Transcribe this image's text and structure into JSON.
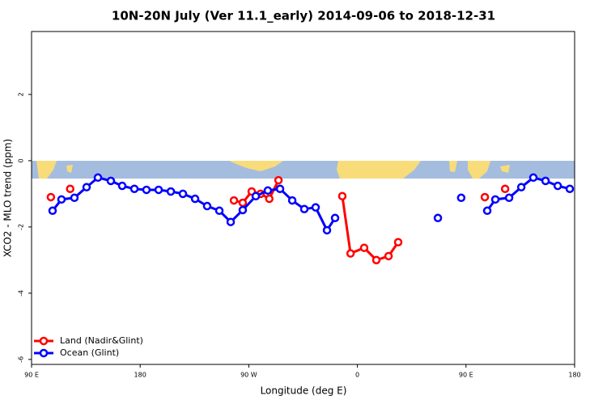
{
  "chart_data": {
    "type": "line",
    "title": "10N-20N July (Ver 11.1_early)   2014-09-06 to 2018-12-31",
    "x_label": "Longitude (deg E)",
    "y_label": "XCO2 - MLO trend (ppm)",
    "xlim": [
      90,
      540
    ],
    "ylim": [
      -6.15,
      3.9
    ],
    "xticks": [
      {
        "value": 90,
        "label": "90 E"
      },
      {
        "value": 180,
        "label": "180"
      },
      {
        "value": 270,
        "label": "90 W"
      },
      {
        "value": 360,
        "label": "0"
      },
      {
        "value": 450,
        "label": "90 E"
      },
      {
        "value": 540,
        "label": "180"
      }
    ],
    "yticks": [
      -6,
      -4,
      -2,
      0,
      2
    ],
    "legend": "bottom-left",
    "series": [
      {
        "name": "Land (Nadir&Glint)",
        "color": "#ff0000",
        "x": [
          106,
          114,
          122,
          190,
          257.7,
          265,
          272.4,
          279.8,
          287,
          294.6,
          320,
          347.5,
          354.3,
          365.6,
          375.7,
          385.8,
          393.8,
          430,
          465.6,
          474,
          482.4
        ],
        "values": [
          -1.1,
          null,
          -0.85,
          null,
          -1.2,
          -1.27,
          -0.93,
          -1.0,
          -1.15,
          -0.59,
          null,
          -1.07,
          -2.8,
          -2.63,
          -3.0,
          -2.88,
          -2.46,
          null,
          -1.1,
          null,
          -0.85
        ]
      },
      {
        "name": "Ocean (Glint)",
        "color": "#0000ff",
        "x": [
          107.4,
          114.8,
          125.5,
          135.6,
          145,
          155.7,
          165.1,
          175.2,
          185.2,
          195.3,
          205.4,
          215.4,
          225.5,
          235.5,
          245.6,
          255,
          265,
          275.8,
          285.8,
          295.9,
          306,
          316,
          325.4,
          334.8,
          341.5,
          400,
          426.7,
          436,
          446,
          457,
          467.6,
          474.3,
          485.7,
          495.8,
          505.8,
          515.9,
          526,
          536
        ],
        "values": [
          -1.51,
          -1.17,
          -1.12,
          -0.8,
          -0.51,
          -0.61,
          -0.76,
          -0.85,
          -0.88,
          -0.88,
          -0.93,
          -1.0,
          -1.15,
          -1.37,
          -1.51,
          -1.85,
          -1.49,
          -1.07,
          -0.9,
          -0.85,
          -1.2,
          -1.46,
          -1.41,
          -2.1,
          -1.73,
          null,
          -1.73,
          null,
          -1.12,
          null,
          -1.51,
          -1.17,
          -1.12,
          -0.8,
          -0.51,
          -0.61,
          -0.76,
          -0.85
        ]
      }
    ]
  }
}
